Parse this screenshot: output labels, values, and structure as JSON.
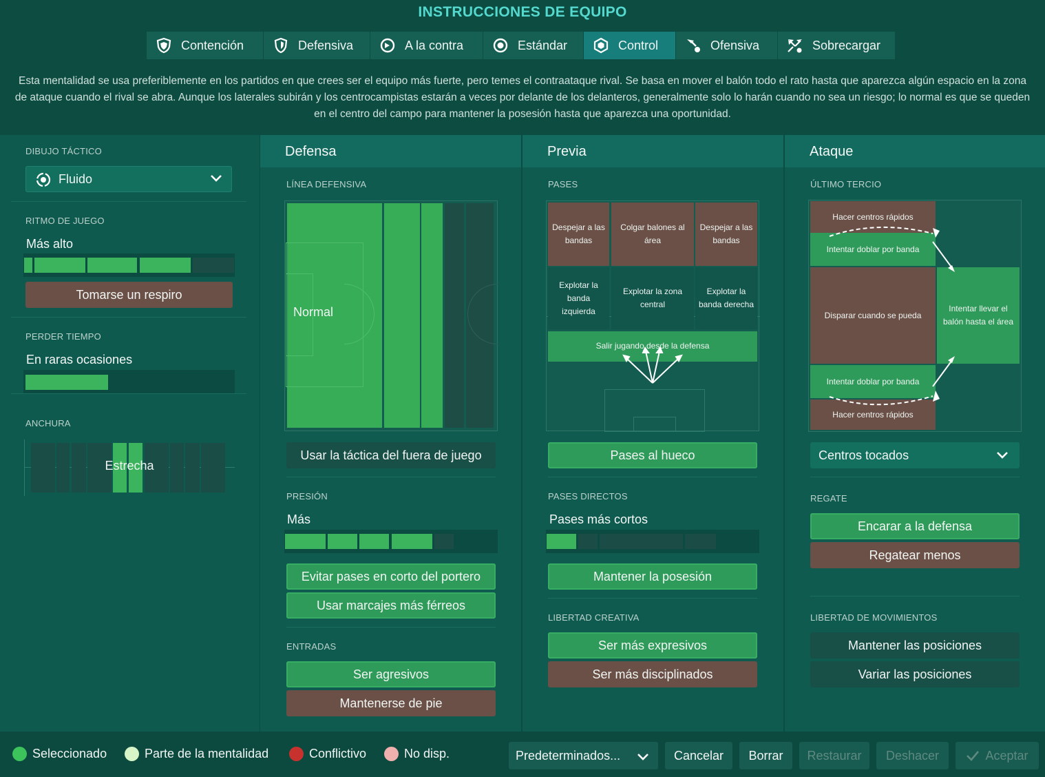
{
  "title": "INSTRUCCIONES DE EQUIPO",
  "tabs": [
    {
      "label": "Contención",
      "icon": "shield-icon"
    },
    {
      "label": "Defensiva",
      "icon": "shield-icon"
    },
    {
      "label": "A la contra",
      "icon": "counter-icon"
    },
    {
      "label": "Estándar",
      "icon": "target-icon"
    },
    {
      "label": "Control",
      "icon": "control-icon",
      "active": true
    },
    {
      "label": "Ofensiva",
      "icon": "attack-icon"
    },
    {
      "label": "Sobrecargar",
      "icon": "overload-icon"
    }
  ],
  "description": "Esta mentalidad se usa preferiblemente en los partidos en que crees ser el equipo más fuerte, pero temes el contraataque rival. Se basa en mover el balón todo el rato hasta que aparezca algún espacio en la zona de ataque cuando el rival se abra. Aunque los laterales subirán y los centrocampistas estarán a veces por delante de los delanteros, generalmente solo lo harán cuando no sea un riesgo; lo normal es que se queden en el centro del campo para mantener la posesión hasta que aparezca una oportunidad.",
  "left": {
    "formation_label": "DIBUJO TÁCTICO",
    "formation_value": "Fluido",
    "tempo_label": "RITMO DE JUEGO",
    "tempo_value": "Más alto",
    "tempo_level": 0.8,
    "tempo_button": "Tomarse un respiro",
    "timewasting_label": "PERDER TIEMPO",
    "timewasting_value": "En raras ocasiones",
    "timewasting_level": 0.2,
    "width_label": "ANCHURA",
    "width_value": "Estrecha"
  },
  "defense": {
    "header": "Defensa",
    "line_label": "LÍNEA DEFENSIVA",
    "line_value": "Normal",
    "offside_button": "Usar la táctica del fuera de juego",
    "press_label": "PRESIÓN",
    "press_value": "Más",
    "press_level": 0.8,
    "press_buttons": [
      "Evitar pases en corto del portero",
      "Usar marcajes más férreos"
    ],
    "tackle_label": "ENTRADAS",
    "tackle_buttons": [
      "Ser agresivos",
      "Mantenerse de pie"
    ]
  },
  "buildup": {
    "header": "Previa",
    "passes_label": "PASES",
    "cells": [
      "Despejar a las bandas",
      "Colgar balones al área",
      "Despejar a las bandas",
      "Explotar la banda izquierda",
      "Explotar la zona central",
      "Explotar la banda derecha",
      "Salir jugando desde la defensa"
    ],
    "through_button": "Pases al hueco",
    "direct_label": "PASES DIRECTOS",
    "direct_value": "Pases más cortos",
    "direct_level": 0.2,
    "possession_button": "Mantener la posesión",
    "creative_label": "LIBERTAD CREATIVA",
    "creative_buttons": [
      "Ser más expresivos",
      "Ser más disciplinados"
    ]
  },
  "attack": {
    "header": "Ataque",
    "third_label": "ÚLTIMO TERCIO",
    "cells": [
      "Hacer centros rápidos",
      "Intentar doblar por banda",
      "Disparar cuando se pueda",
      "Intentar llevar el balón hasta el área",
      "Intentar doblar por banda",
      "Hacer centros rápidos"
    ],
    "cross_select": "Centros tocados",
    "dribble_label": "REGATE",
    "dribble_buttons": [
      "Encarar a la defensa",
      "Regatear menos"
    ],
    "movement_label": "LIBERTAD DE MOVIMIENTOS",
    "movement_buttons": [
      "Mantener las posiciones",
      "Variar las posiciones"
    ]
  },
  "legend": [
    {
      "label": "Seleccionado",
      "color": "#3cc35b"
    },
    {
      "label": "Parte de la mentalidad",
      "color": "#d7f4c8"
    },
    {
      "label": "Conflictivo",
      "color": "#c8322e"
    },
    {
      "label": "No disp.",
      "color": "#f0b0ad"
    }
  ],
  "footer": {
    "defaults": "Predeterminados...",
    "cancel": "Cancelar",
    "clear": "Borrar",
    "restore": "Restaurar",
    "undo": "Deshacer",
    "accept": "Aceptar"
  },
  "colors": {
    "accent": "#55d9cf",
    "selected": "#2f9b5a",
    "conflict": "#6b5047",
    "active_tab": "#177e7b"
  }
}
